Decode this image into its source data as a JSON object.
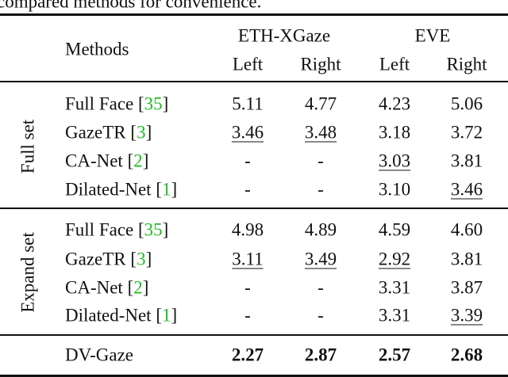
{
  "caption_fragment": "compared methods for convenience.",
  "header": {
    "methods": "Methods",
    "datasets": [
      "ETH-XGaze",
      "EVE"
    ],
    "eyes": [
      "Left",
      "Right",
      "Left",
      "Right"
    ]
  },
  "cite_brackets": [
    "[",
    "]"
  ],
  "groups": [
    {
      "label": "Full set",
      "rows": [
        {
          "name": "Full Face ",
          "ref": "35",
          "cells": [
            "5.11",
            "4.77",
            "4.23",
            "5.06"
          ],
          "underline": []
        },
        {
          "name": "GazeTR ",
          "ref": "3",
          "cells": [
            "3.46",
            "3.48",
            "3.18",
            "3.72"
          ],
          "underline": [
            0,
            1
          ]
        },
        {
          "name": "CA-Net ",
          "ref": "2",
          "cells": [
            "-",
            "-",
            "3.03",
            "3.81"
          ],
          "underline": [
            2
          ]
        },
        {
          "name": "Dilated-Net ",
          "ref": "1",
          "cells": [
            "-",
            "-",
            "3.10",
            "3.46"
          ],
          "underline": [
            3
          ]
        }
      ]
    },
    {
      "label": "Expand set",
      "rows": [
        {
          "name": "Full Face ",
          "ref": "35",
          "cells": [
            "4.98",
            "4.89",
            "4.59",
            "4.60"
          ],
          "underline": []
        },
        {
          "name": "GazeTR ",
          "ref": "3",
          "cells": [
            "3.11",
            "3.49",
            "2.92",
            "3.81"
          ],
          "underline": [
            0,
            1,
            2
          ]
        },
        {
          "name": "CA-Net ",
          "ref": "2",
          "cells": [
            "-",
            "-",
            "3.31",
            "3.87"
          ],
          "underline": []
        },
        {
          "name": "Dilated-Net ",
          "ref": "1",
          "cells": [
            "-",
            "-",
            "3.31",
            "3.39"
          ],
          "underline": [
            3
          ]
        }
      ]
    }
  ],
  "final": {
    "name": "DV-Gaze",
    "cells": [
      "2.27",
      "2.87",
      "2.57",
      "2.68"
    ],
    "bold": true
  }
}
